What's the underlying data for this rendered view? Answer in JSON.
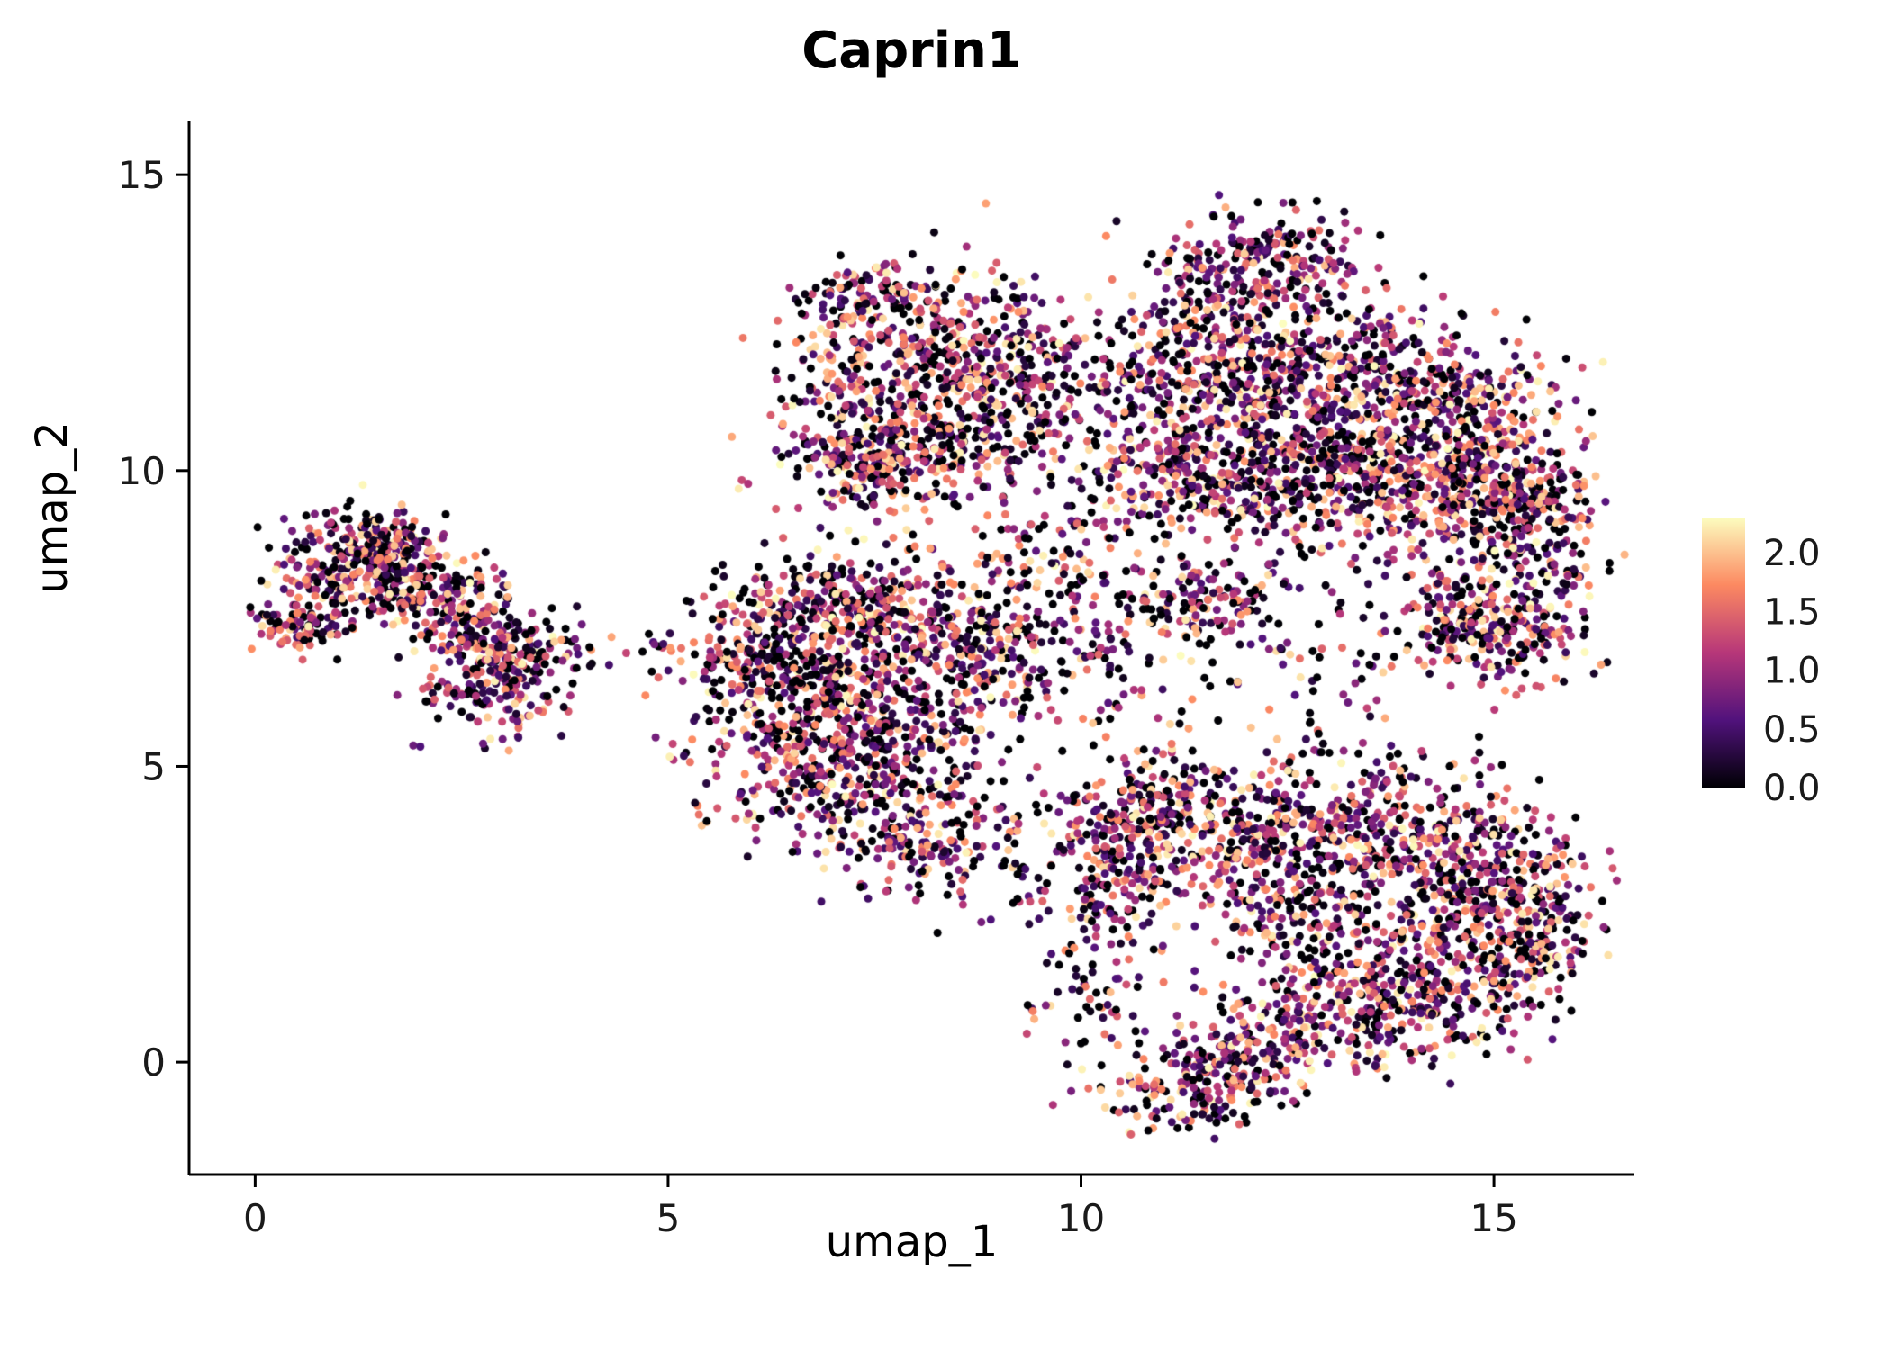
{
  "chart_data": {
    "type": "scatter",
    "title": "Caprin1",
    "xlabel": "umap_1",
    "ylabel": "umap_2",
    "xlim": [
      -0.8,
      16.7
    ],
    "ylim": [
      -1.9,
      15.9
    ],
    "x_ticks": [
      0,
      5,
      10,
      15
    ],
    "x_tick_labels": [
      "0",
      "5",
      "10",
      "15"
    ],
    "y_ticks": [
      0,
      5,
      10,
      15
    ],
    "y_tick_labels": [
      "0",
      "5",
      "10",
      "15"
    ],
    "grid": false,
    "point_radius": 4.5,
    "seed": 20240715,
    "expression": {
      "zero_fraction": 0.17,
      "max": 2.3,
      "gamma": 1.25
    },
    "colormap": {
      "name": "magma",
      "stops": [
        {
          "t": 0.0,
          "color": "#000004"
        },
        {
          "t": 0.25,
          "color": "#51127c"
        },
        {
          "t": 0.5,
          "color": "#b73779"
        },
        {
          "t": 0.75,
          "color": "#fc8961"
        },
        {
          "t": 1.0,
          "color": "#fcfdbf"
        }
      ]
    },
    "legend": {
      "position": "right",
      "vmin": 0,
      "vmax": 2.3,
      "ticks": [
        2.0,
        1.5,
        1.0,
        0.5,
        0.0
      ],
      "tick_labels": [
        "2.0",
        "1.5",
        "1.0",
        "0.5",
        "0.0"
      ]
    },
    "clusters": {
      "format": "[center_x, center_y, sd_x, sd_y, n_points]",
      "blobs": [
        [
          1.2,
          8.4,
          0.5,
          0.45,
          240
        ],
        [
          2.1,
          8.0,
          0.55,
          0.35,
          170
        ],
        [
          2.9,
          6.45,
          0.45,
          0.5,
          210
        ],
        [
          0.55,
          7.35,
          0.3,
          0.22,
          90
        ],
        [
          1.6,
          8.9,
          0.35,
          0.25,
          70
        ],
        [
          3.6,
          6.9,
          0.45,
          0.25,
          45
        ],
        [
          2.6,
          7.4,
          0.4,
          0.3,
          80
        ],
        [
          4.95,
          7.0,
          0.2,
          0.25,
          12
        ],
        [
          6.5,
          7.3,
          0.6,
          0.6,
          220
        ],
        [
          7.5,
          7.7,
          0.7,
          0.5,
          260
        ],
        [
          6.6,
          5.4,
          0.65,
          0.75,
          280
        ],
        [
          7.7,
          4.5,
          0.75,
          0.65,
          240
        ],
        [
          8.7,
          7.0,
          0.6,
          0.55,
          190
        ],
        [
          8.5,
          3.6,
          0.55,
          0.5,
          110
        ],
        [
          5.9,
          6.6,
          0.3,
          0.5,
          70
        ],
        [
          8.3,
          5.9,
          0.6,
          0.6,
          120
        ],
        [
          7.2,
          6.3,
          0.5,
          0.5,
          150
        ],
        [
          7.5,
          10.15,
          0.55,
          0.45,
          280
        ],
        [
          8.4,
          12.2,
          0.65,
          0.6,
          260
        ],
        [
          8.6,
          10.7,
          0.75,
          0.55,
          230
        ],
        [
          7.35,
          12.9,
          0.4,
          0.3,
          110
        ],
        [
          9.4,
          11.5,
          0.5,
          0.55,
          140
        ],
        [
          7.1,
          11.6,
          0.35,
          0.5,
          90
        ],
        [
          12.2,
          13.5,
          0.65,
          0.45,
          230
        ],
        [
          11.3,
          12.4,
          0.5,
          0.55,
          130
        ],
        [
          13.2,
          12.0,
          0.85,
          0.6,
          280
        ],
        [
          12.5,
          10.4,
          0.85,
          0.75,
          380
        ],
        [
          13.9,
          9.9,
          0.95,
          0.65,
          470
        ],
        [
          15.2,
          9.6,
          0.55,
          0.5,
          240
        ],
        [
          11.2,
          9.8,
          0.65,
          0.55,
          240
        ],
        [
          14.6,
          11.2,
          0.65,
          0.5,
          190
        ],
        [
          10.6,
          11.2,
          0.4,
          0.55,
          90
        ],
        [
          15.5,
          8.5,
          0.4,
          0.4,
          100
        ],
        [
          12.0,
          11.5,
          0.5,
          0.4,
          120
        ],
        [
          15.1,
          7.3,
          0.5,
          0.45,
          200
        ],
        [
          14.3,
          7.7,
          0.4,
          0.35,
          90
        ],
        [
          10.3,
          7.4,
          0.9,
          0.85,
          140
        ],
        [
          11.55,
          7.85,
          0.45,
          0.35,
          110
        ],
        [
          12.4,
          6.4,
          0.8,
          0.8,
          70
        ],
        [
          9.6,
          8.6,
          0.5,
          0.5,
          60
        ],
        [
          11.1,
          4.25,
          0.65,
          0.55,
          230
        ],
        [
          10.4,
          3.3,
          0.45,
          0.65,
          180
        ],
        [
          12.3,
          3.5,
          0.75,
          0.75,
          270
        ],
        [
          13.8,
          3.9,
          0.85,
          0.65,
          330
        ],
        [
          15.0,
          3.0,
          0.55,
          0.65,
          240
        ],
        [
          14.6,
          1.6,
          0.65,
          0.65,
          280
        ],
        [
          13.3,
          0.9,
          0.65,
          0.55,
          230
        ],
        [
          12.0,
          0.2,
          0.55,
          0.45,
          180
        ],
        [
          11.25,
          -0.45,
          0.45,
          0.35,
          130
        ],
        [
          12.7,
          2.3,
          0.55,
          0.55,
          90
        ],
        [
          10.05,
          1.3,
          0.35,
          0.75,
          70
        ],
        [
          15.6,
          2.2,
          0.35,
          0.5,
          80
        ]
      ]
    }
  }
}
